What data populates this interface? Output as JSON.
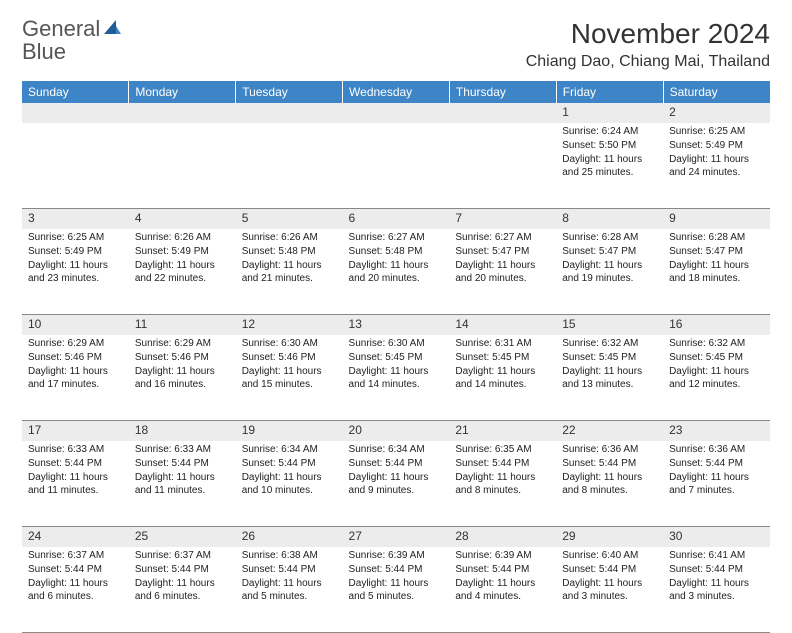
{
  "brand": {
    "word1": "General",
    "word2": "Blue"
  },
  "title": "November 2024",
  "location": "Chiang Dao, Chiang Mai, Thailand",
  "header_bg": "#3d85c6",
  "header_fg": "#ffffff",
  "daynum_bg": "#ececec",
  "weekdays": [
    "Sunday",
    "Monday",
    "Tuesday",
    "Wednesday",
    "Thursday",
    "Friday",
    "Saturday"
  ],
  "weeks": [
    {
      "days": [
        {
          "n": "",
          "sunrise": "",
          "sunset": "",
          "daylight": ""
        },
        {
          "n": "",
          "sunrise": "",
          "sunset": "",
          "daylight": ""
        },
        {
          "n": "",
          "sunrise": "",
          "sunset": "",
          "daylight": ""
        },
        {
          "n": "",
          "sunrise": "",
          "sunset": "",
          "daylight": ""
        },
        {
          "n": "",
          "sunrise": "",
          "sunset": "",
          "daylight": ""
        },
        {
          "n": "1",
          "sunrise": "Sunrise: 6:24 AM",
          "sunset": "Sunset: 5:50 PM",
          "daylight": "Daylight: 11 hours and 25 minutes."
        },
        {
          "n": "2",
          "sunrise": "Sunrise: 6:25 AM",
          "sunset": "Sunset: 5:49 PM",
          "daylight": "Daylight: 11 hours and 24 minutes."
        }
      ]
    },
    {
      "days": [
        {
          "n": "3",
          "sunrise": "Sunrise: 6:25 AM",
          "sunset": "Sunset: 5:49 PM",
          "daylight": "Daylight: 11 hours and 23 minutes."
        },
        {
          "n": "4",
          "sunrise": "Sunrise: 6:26 AM",
          "sunset": "Sunset: 5:49 PM",
          "daylight": "Daylight: 11 hours and 22 minutes."
        },
        {
          "n": "5",
          "sunrise": "Sunrise: 6:26 AM",
          "sunset": "Sunset: 5:48 PM",
          "daylight": "Daylight: 11 hours and 21 minutes."
        },
        {
          "n": "6",
          "sunrise": "Sunrise: 6:27 AM",
          "sunset": "Sunset: 5:48 PM",
          "daylight": "Daylight: 11 hours and 20 minutes."
        },
        {
          "n": "7",
          "sunrise": "Sunrise: 6:27 AM",
          "sunset": "Sunset: 5:47 PM",
          "daylight": "Daylight: 11 hours and 20 minutes."
        },
        {
          "n": "8",
          "sunrise": "Sunrise: 6:28 AM",
          "sunset": "Sunset: 5:47 PM",
          "daylight": "Daylight: 11 hours and 19 minutes."
        },
        {
          "n": "9",
          "sunrise": "Sunrise: 6:28 AM",
          "sunset": "Sunset: 5:47 PM",
          "daylight": "Daylight: 11 hours and 18 minutes."
        }
      ]
    },
    {
      "days": [
        {
          "n": "10",
          "sunrise": "Sunrise: 6:29 AM",
          "sunset": "Sunset: 5:46 PM",
          "daylight": "Daylight: 11 hours and 17 minutes."
        },
        {
          "n": "11",
          "sunrise": "Sunrise: 6:29 AM",
          "sunset": "Sunset: 5:46 PM",
          "daylight": "Daylight: 11 hours and 16 minutes."
        },
        {
          "n": "12",
          "sunrise": "Sunrise: 6:30 AM",
          "sunset": "Sunset: 5:46 PM",
          "daylight": "Daylight: 11 hours and 15 minutes."
        },
        {
          "n": "13",
          "sunrise": "Sunrise: 6:30 AM",
          "sunset": "Sunset: 5:45 PM",
          "daylight": "Daylight: 11 hours and 14 minutes."
        },
        {
          "n": "14",
          "sunrise": "Sunrise: 6:31 AM",
          "sunset": "Sunset: 5:45 PM",
          "daylight": "Daylight: 11 hours and 14 minutes."
        },
        {
          "n": "15",
          "sunrise": "Sunrise: 6:32 AM",
          "sunset": "Sunset: 5:45 PM",
          "daylight": "Daylight: 11 hours and 13 minutes."
        },
        {
          "n": "16",
          "sunrise": "Sunrise: 6:32 AM",
          "sunset": "Sunset: 5:45 PM",
          "daylight": "Daylight: 11 hours and 12 minutes."
        }
      ]
    },
    {
      "days": [
        {
          "n": "17",
          "sunrise": "Sunrise: 6:33 AM",
          "sunset": "Sunset: 5:44 PM",
          "daylight": "Daylight: 11 hours and 11 minutes."
        },
        {
          "n": "18",
          "sunrise": "Sunrise: 6:33 AM",
          "sunset": "Sunset: 5:44 PM",
          "daylight": "Daylight: 11 hours and 11 minutes."
        },
        {
          "n": "19",
          "sunrise": "Sunrise: 6:34 AM",
          "sunset": "Sunset: 5:44 PM",
          "daylight": "Daylight: 11 hours and 10 minutes."
        },
        {
          "n": "20",
          "sunrise": "Sunrise: 6:34 AM",
          "sunset": "Sunset: 5:44 PM",
          "daylight": "Daylight: 11 hours and 9 minutes."
        },
        {
          "n": "21",
          "sunrise": "Sunrise: 6:35 AM",
          "sunset": "Sunset: 5:44 PM",
          "daylight": "Daylight: 11 hours and 8 minutes."
        },
        {
          "n": "22",
          "sunrise": "Sunrise: 6:36 AM",
          "sunset": "Sunset: 5:44 PM",
          "daylight": "Daylight: 11 hours and 8 minutes."
        },
        {
          "n": "23",
          "sunrise": "Sunrise: 6:36 AM",
          "sunset": "Sunset: 5:44 PM",
          "daylight": "Daylight: 11 hours and 7 minutes."
        }
      ]
    },
    {
      "days": [
        {
          "n": "24",
          "sunrise": "Sunrise: 6:37 AM",
          "sunset": "Sunset: 5:44 PM",
          "daylight": "Daylight: 11 hours and 6 minutes."
        },
        {
          "n": "25",
          "sunrise": "Sunrise: 6:37 AM",
          "sunset": "Sunset: 5:44 PM",
          "daylight": "Daylight: 11 hours and 6 minutes."
        },
        {
          "n": "26",
          "sunrise": "Sunrise: 6:38 AM",
          "sunset": "Sunset: 5:44 PM",
          "daylight": "Daylight: 11 hours and 5 minutes."
        },
        {
          "n": "27",
          "sunrise": "Sunrise: 6:39 AM",
          "sunset": "Sunset: 5:44 PM",
          "daylight": "Daylight: 11 hours and 5 minutes."
        },
        {
          "n": "28",
          "sunrise": "Sunrise: 6:39 AM",
          "sunset": "Sunset: 5:44 PM",
          "daylight": "Daylight: 11 hours and 4 minutes."
        },
        {
          "n": "29",
          "sunrise": "Sunrise: 6:40 AM",
          "sunset": "Sunset: 5:44 PM",
          "daylight": "Daylight: 11 hours and 3 minutes."
        },
        {
          "n": "30",
          "sunrise": "Sunrise: 6:41 AM",
          "sunset": "Sunset: 5:44 PM",
          "daylight": "Daylight: 11 hours and 3 minutes."
        }
      ]
    }
  ]
}
